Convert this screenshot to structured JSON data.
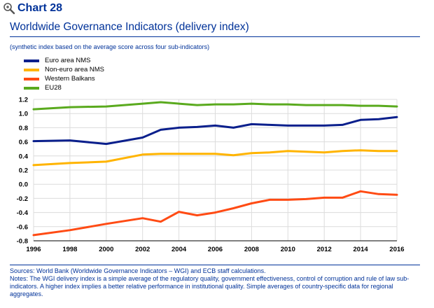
{
  "header": {
    "chart_number": "Chart 28",
    "icon": "magnifier-icon"
  },
  "title": "Worldwide Governance Indicators (delivery index)",
  "subtitle": "(synthetic index based on the average score across four sub-indicators)",
  "colors": {
    "ecb_blue": "#003299",
    "euro_nms": "#0a1f8c",
    "non_euro_nms": "#ffb400",
    "western_balkans": "#ff4b14",
    "eu28": "#5aaa1e",
    "grid": "#dcdcdc"
  },
  "footnotes": {
    "sources": "Sources: World Bank (Worldwide Governance Indicators – WGI) and ECB staff calculations.",
    "notes": "Notes: The WGI delivery index is a simple average of the regulatory quality, government effectiveness, control of corruption and rule of law sub-indicators. A higher index implies a better relative performance in institutional quality. Simple averages of country-specific data for regional aggregates."
  },
  "chart_data": {
    "type": "line",
    "title": "Worldwide Governance Indicators (delivery index)",
    "xlabel": "",
    "ylabel": "",
    "xlim": [
      1996,
      2016
    ],
    "ylim": [
      -0.8,
      1.2
    ],
    "x_ticks": [
      1996,
      1998,
      2000,
      2002,
      2004,
      2006,
      2008,
      2010,
      2012,
      2014,
      2016
    ],
    "y_ticks": [
      1.2,
      1.0,
      0.8,
      0.6,
      0.4,
      0.2,
      0.0,
      -0.2,
      -0.4,
      -0.6,
      -0.8
    ],
    "x_tick_labels": [
      "1996",
      "1998",
      "2000",
      "2002",
      "2004",
      "2006",
      "2008",
      "2010",
      "2012",
      "2014",
      "2016"
    ],
    "y_tick_labels": [
      "1.2",
      "1.0",
      "0.8",
      "0.6",
      "0.4",
      "0.2",
      "0.0",
      "-0.2",
      "-0.4",
      "-0.6",
      "-0.8"
    ],
    "grid": true,
    "legend_position": "top-left",
    "x": [
      1996,
      1998,
      2000,
      2002,
      2003,
      2004,
      2005,
      2006,
      2007,
      2008,
      2009,
      2010,
      2011,
      2012,
      2013,
      2014,
      2015,
      2016
    ],
    "series": [
      {
        "name": "Euro area NMS",
        "color": "#0a1f8c",
        "values": [
          0.61,
          0.62,
          0.57,
          0.66,
          0.77,
          0.8,
          0.81,
          0.83,
          0.8,
          0.85,
          0.84,
          0.83,
          0.83,
          0.83,
          0.84,
          0.91,
          0.92,
          0.95
        ]
      },
      {
        "name": "Non-euro area NMS",
        "color": "#ffb400",
        "values": [
          0.27,
          0.3,
          0.32,
          0.42,
          0.43,
          0.43,
          0.43,
          0.43,
          0.41,
          0.44,
          0.45,
          0.47,
          0.46,
          0.45,
          0.47,
          0.48,
          0.47,
          0.47
        ]
      },
      {
        "name": "Western Balkans",
        "color": "#ff4b14",
        "values": [
          -0.72,
          -0.65,
          -0.56,
          -0.48,
          -0.53,
          -0.39,
          -0.44,
          -0.4,
          -0.34,
          -0.27,
          -0.22,
          -0.22,
          -0.21,
          -0.19,
          -0.19,
          -0.1,
          -0.14,
          -0.15
        ]
      },
      {
        "name": "EU28",
        "color": "#5aaa1e",
        "values": [
          1.06,
          1.09,
          1.1,
          1.14,
          1.16,
          1.14,
          1.12,
          1.13,
          1.13,
          1.14,
          1.13,
          1.13,
          1.12,
          1.12,
          1.12,
          1.11,
          1.11,
          1.1
        ]
      }
    ]
  }
}
